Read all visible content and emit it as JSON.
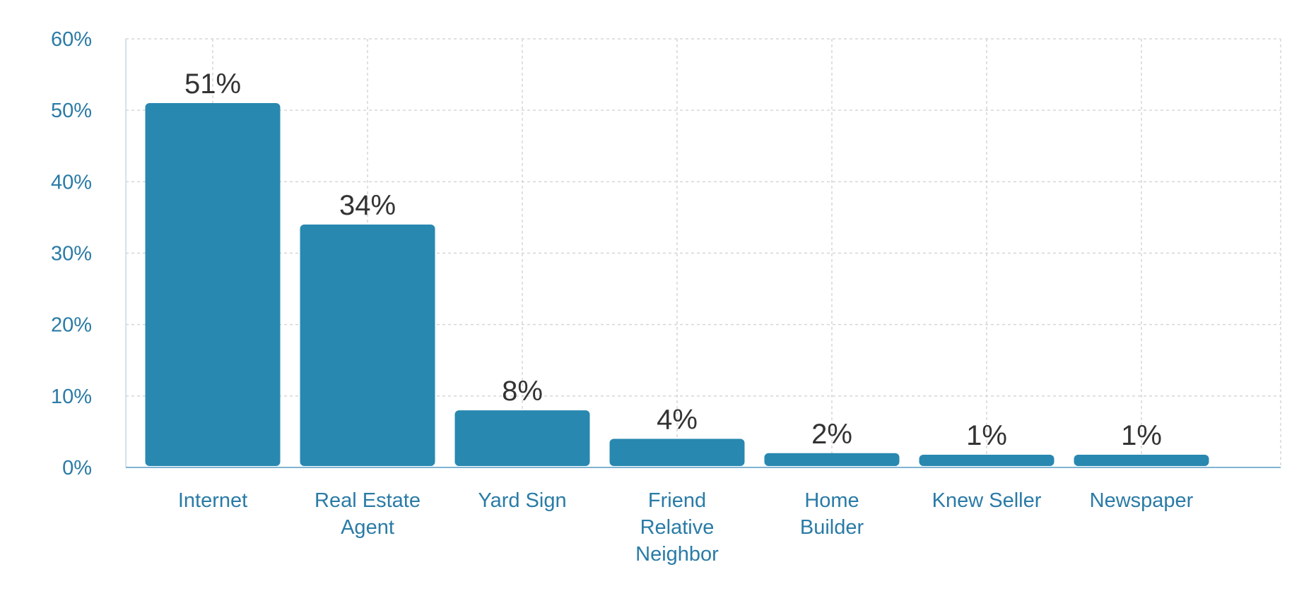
{
  "chart_data": {
    "type": "bar",
    "title": "",
    "xlabel": "",
    "ylabel": "",
    "categories": [
      [
        "Internet"
      ],
      [
        "Real Estate",
        "Agent"
      ],
      [
        "Yard Sign"
      ],
      [
        "Friend",
        "Relative",
        "Neighbor"
      ],
      [
        "Home",
        "Builder"
      ],
      [
        "Knew Seller"
      ],
      [
        "Newspaper"
      ]
    ],
    "values": [
      51,
      34,
      8,
      4,
      2,
      1,
      1
    ],
    "value_labels": [
      "51%",
      "34%",
      "8%",
      "4%",
      "2%",
      "1%",
      "1%"
    ],
    "ylim": [
      0,
      60
    ],
    "yticks": [
      0,
      10,
      20,
      30,
      40,
      50,
      60
    ],
    "ytick_labels": [
      "0%",
      "10%",
      "20%",
      "30%",
      "40%",
      "50%",
      "60%"
    ],
    "grid": true,
    "legend": "none",
    "colors": {
      "bar": "#2888b0",
      "axis_text": "#2a7ba6",
      "data_label": "#333333",
      "grid": "#d6d6d6",
      "baseline": "#7fb4d4"
    }
  }
}
